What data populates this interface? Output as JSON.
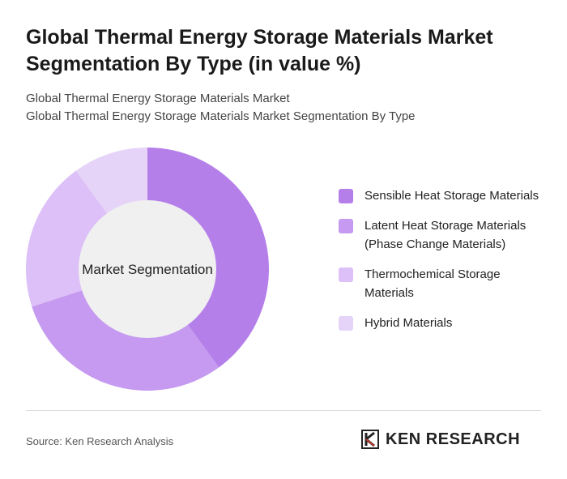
{
  "chart_data": {
    "type": "donut",
    "title": "Global Thermal Energy Storage Materials Market Segmentation By Type (in value %)",
    "subtitle": [
      "Global Thermal Energy Storage Materials Market",
      "Global Thermal Energy Storage Materials Market Segmentation By Type"
    ],
    "center_label": "Market Segmentation",
    "categories": [
      "Sensible Heat Storage Materials",
      "Latent Heat Storage Materials (Phase Change Materials)",
      "Thermochemical Storage Materials",
      "Hybrid Materials"
    ],
    "values": [
      40,
      30,
      20,
      10
    ],
    "colors": [
      "#b57fea",
      "#c59af0",
      "#dcc0f7",
      "#e6d4f8"
    ],
    "legend": "right"
  },
  "footer": {
    "source": "Source: Ken Research Analysis",
    "logo": "KEN RESEARCH"
  }
}
